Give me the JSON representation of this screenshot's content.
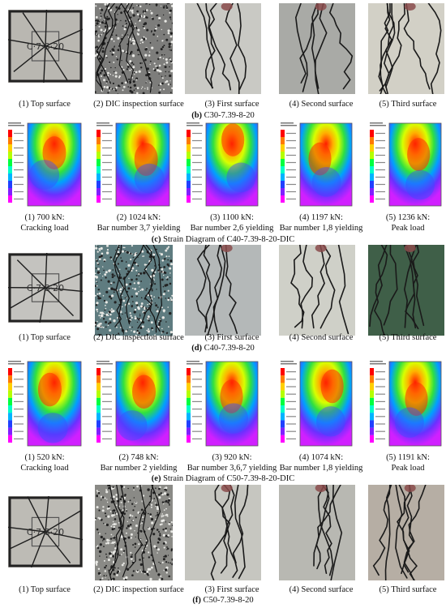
{
  "sections": [
    {
      "kind": "photos",
      "title_letter": "(b)",
      "title_text": "C30-7.39-8-20",
      "captions": [
        "(1) Top surface",
        "(2) DIC inspection surface",
        "(3) First surface",
        "(4) Second surface",
        "(5) Third surface"
      ],
      "tones": [
        "#b9b7b1",
        "#7d7d7b",
        "#c9c9c4",
        "#a9aaa6",
        "#d2d0c6"
      ]
    },
    {
      "kind": "strain",
      "title_letter": "(c)",
      "title_text": "Strain Diagram of C40-7.39-8-20-DIC",
      "captions_line1": [
        "(1) 700 kN:",
        "(2) 1024 kN:",
        "(3) 1100 kN:",
        "(4) 1197 kN:",
        "(5) 1236 kN:"
      ],
      "captions_line2": [
        "Cracking load",
        "Bar number 3,7 yielding",
        "Bar number 2,6 yielding",
        "Bar number 1,8 yielding",
        "Peak load"
      ]
    },
    {
      "kind": "photos",
      "title_letter": "(d)",
      "title_text": "C40-7.39-8-20",
      "captions": [
        "(1) Top surface",
        "(2) DIC inspection surface",
        "(3) First surface",
        "(4) Second surface",
        "(5) Third surface"
      ],
      "tones": [
        "#c4c3bf",
        "#5f7c80",
        "#b4b8b8",
        "#cfd0c8",
        "#3f5f48"
      ]
    },
    {
      "kind": "strain",
      "title_letter": "(e)",
      "title_text": "Strain Diagram of C50-7.39-8-20-DIC",
      "captions_line1": [
        "(1) 520 kN:",
        "(2) 748 kN:",
        "(3) 920 kN:",
        "(4) 1074 kN:",
        "(5) 1191 kN:"
      ],
      "captions_line2": [
        "Cracking load",
        "Bar number 2 yielding",
        "Bar number 3,6,7 yielding",
        "Bar number 1,8 yielding",
        "Peak load"
      ]
    },
    {
      "kind": "photos",
      "title_letter": "(f)",
      "title_text": "C50-7.39-8-20",
      "captions": [
        "(1) Top surface",
        "(2) DIC inspection surface",
        "(3) First surface",
        "(4) Second surface",
        "(5) Third surface"
      ],
      "tones": [
        "#bdbbb5",
        "#8a8a86",
        "#c6c6c0",
        "#b8b8b2",
        "#b6aea4"
      ]
    }
  ]
}
